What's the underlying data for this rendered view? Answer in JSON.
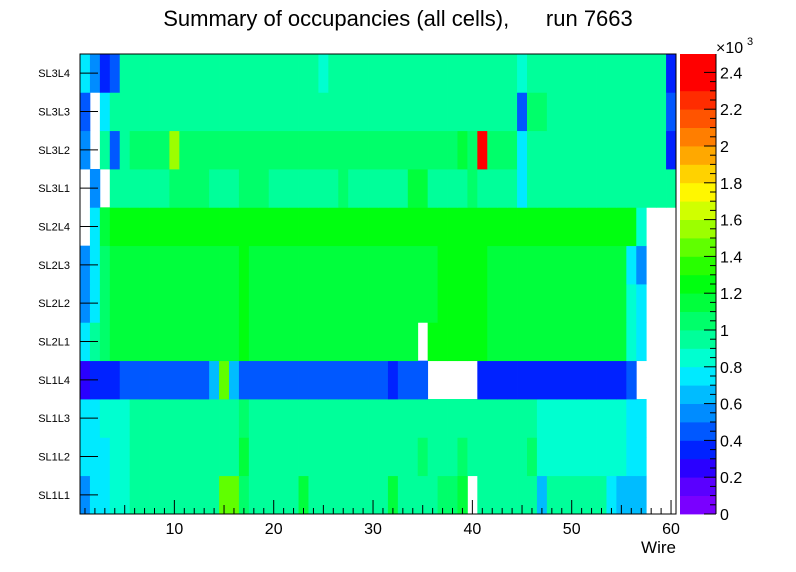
{
  "title": "Summary of occupancies (all cells),      run 7663",
  "chart_data": {
    "type": "heatmap",
    "title": "Summary of occupancies (all cells),      run 7663",
    "xlabel": "Wire",
    "ylabel": "",
    "xlim": [
      0.5,
      60.5
    ],
    "x_ticks": [
      "10",
      "20",
      "30",
      "40",
      "50",
      "60"
    ],
    "y_categories": [
      "SL1L1",
      "SL1L2",
      "SL1L3",
      "SL1L4",
      "SL2L1",
      "SL2L2",
      "SL2L3",
      "SL2L4",
      "SL3L1",
      "SL3L2",
      "SL3L3",
      "SL3L4"
    ],
    "z_range": [
      0,
      2500
    ],
    "z_exponent_label": "×10",
    "z_exponent": "3",
    "z_ticks": [
      "0",
      "0.2",
      "0.4",
      "0.6",
      "0.8",
      "1",
      "1.2",
      "1.4",
      "1.6",
      "1.8",
      "2",
      "2.2",
      "2.4"
    ],
    "palette": [
      "#7a00ff",
      "#5a00ff",
      "#2a00ff",
      "#0022ff",
      "#0058ff",
      "#008cff",
      "#00bcff",
      "#00eaff",
      "#00ffd0",
      "#00ff9a",
      "#00ff6a",
      "#00ff3c",
      "#00ff10",
      "#28ff00",
      "#60ff00",
      "#9cff00",
      "#d0ff00",
      "#fff700",
      "#ffd200",
      "#ffa800",
      "#ff7e00",
      "#ff5400",
      "#ff2c00",
      "#ff0000",
      "#ff0000"
    ],
    "z_units_per_color": 100,
    "rows": [
      [
        570,
        750,
        780,
        850,
        850,
        950,
        950,
        950,
        950,
        950,
        950,
        950,
        950,
        930,
        1450,
        1450,
        1000,
        950,
        950,
        950,
        930,
        950,
        1100,
        950,
        950,
        950,
        950,
        950,
        950,
        950,
        950,
        1100,
        950,
        950,
        950,
        950,
        1050,
        1050,
        1100,
        0,
        950,
        950,
        950,
        950,
        950,
        950,
        680,
        950,
        950,
        950,
        950,
        950,
        950,
        750,
        650,
        650,
        650,
        0,
        0,
        0
      ],
      [
        700,
        750,
        700,
        860,
        860,
        950,
        950,
        950,
        950,
        950,
        950,
        950,
        950,
        940,
        950,
        950,
        1100,
        950,
        950,
        950,
        950,
        950,
        950,
        950,
        950,
        950,
        950,
        950,
        950,
        950,
        950,
        950,
        950,
        950,
        1050,
        950,
        950,
        950,
        1050,
        950,
        950,
        950,
        950,
        950,
        950,
        1050,
        880,
        880,
        880,
        880,
        880,
        880,
        820,
        800,
        880,
        700,
        700,
        0,
        0,
        0
      ],
      [
        700,
        750,
        850,
        850,
        850,
        950,
        950,
        950,
        950,
        950,
        950,
        950,
        950,
        950,
        950,
        950,
        1000,
        950,
        950,
        950,
        950,
        950,
        950,
        950,
        950,
        950,
        950,
        950,
        950,
        950,
        950,
        950,
        950,
        950,
        950,
        950,
        950,
        950,
        950,
        950,
        950,
        950,
        950,
        950,
        950,
        950,
        870,
        870,
        870,
        870,
        870,
        870,
        870,
        870,
        870,
        700,
        700,
        0,
        0,
        0
      ],
      [
        280,
        350,
        300,
        300,
        400,
        400,
        400,
        400,
        400,
        400,
        400,
        400,
        400,
        600,
        1400,
        600,
        400,
        400,
        400,
        400,
        400,
        400,
        400,
        400,
        400,
        400,
        400,
        400,
        400,
        400,
        400,
        350,
        400,
        400,
        400,
        0,
        0,
        0,
        0,
        0,
        300,
        300,
        300,
        300,
        300,
        300,
        300,
        300,
        300,
        300,
        300,
        300,
        300,
        300,
        380,
        450,
        0,
        0,
        0,
        0
      ],
      [
        700,
        900,
        1050,
        1150,
        1150,
        1150,
        1150,
        1150,
        1150,
        1150,
        1150,
        1150,
        1150,
        1150,
        1150,
        1150,
        1200,
        1150,
        1150,
        1150,
        1150,
        1150,
        1150,
        1150,
        1150,
        1150,
        1150,
        1150,
        1150,
        1150,
        1150,
        1150,
        1150,
        1150,
        0,
        1250,
        1250,
        1250,
        1250,
        1250,
        1250,
        1150,
        1150,
        1150,
        1150,
        1150,
        1150,
        1150,
        1150,
        1150,
        1150,
        1150,
        1150,
        1150,
        1150,
        850,
        700,
        0,
        0,
        0
      ],
      [
        500,
        700,
        1050,
        1150,
        1150,
        1150,
        1150,
        1150,
        1150,
        1150,
        1150,
        1150,
        1150,
        1150,
        1150,
        1150,
        1200,
        1150,
        1150,
        1150,
        1150,
        1150,
        1150,
        1150,
        1150,
        1150,
        1150,
        1150,
        1150,
        1150,
        1150,
        1150,
        1150,
        1150,
        1150,
        1150,
        1250,
        1250,
        1250,
        1250,
        1250,
        1150,
        1150,
        1150,
        1150,
        1150,
        1150,
        1150,
        1150,
        1150,
        1150,
        1150,
        1150,
        1150,
        1150,
        850,
        700,
        0,
        0,
        0
      ],
      [
        500,
        700,
        1050,
        1150,
        1150,
        1150,
        1150,
        1150,
        1150,
        1150,
        1150,
        1150,
        1150,
        1150,
        1150,
        1150,
        1200,
        1150,
        1150,
        1150,
        1150,
        1150,
        1150,
        1150,
        1150,
        1150,
        1150,
        1150,
        1150,
        1150,
        1150,
        1150,
        1150,
        1150,
        1150,
        1150,
        1250,
        1250,
        1250,
        1250,
        1250,
        1150,
        1150,
        1150,
        1150,
        1150,
        1150,
        1150,
        1150,
        1150,
        1150,
        1150,
        1150,
        1150,
        1150,
        700,
        500,
        0,
        0,
        0
      ],
      [
        0,
        750,
        1100,
        1200,
        1200,
        1200,
        1200,
        1200,
        1200,
        1200,
        1200,
        1200,
        1250,
        1250,
        1200,
        1200,
        1200,
        1200,
        1200,
        1200,
        1200,
        1200,
        1200,
        1200,
        1200,
        1200,
        1200,
        1200,
        1200,
        1200,
        1200,
        1200,
        1200,
        1200,
        1200,
        1200,
        1200,
        1200,
        1200,
        1200,
        1200,
        1200,
        1200,
        1200,
        1200,
        1200,
        1200,
        1200,
        1200,
        1200,
        1200,
        1200,
        1200,
        1200,
        1200,
        1200,
        850,
        0,
        0,
        0
      ],
      [
        0,
        500,
        0,
        900,
        900,
        950,
        950,
        950,
        950,
        1050,
        1050,
        1050,
        1050,
        950,
        950,
        950,
        1050,
        1050,
        1050,
        950,
        950,
        950,
        950,
        950,
        950,
        950,
        1050,
        950,
        950,
        950,
        950,
        950,
        950,
        1150,
        1150,
        950,
        950,
        950,
        950,
        1050,
        950,
        950,
        950,
        950,
        700,
        950,
        950,
        950,
        950,
        950,
        950,
        950,
        950,
        950,
        950,
        950,
        950,
        950,
        950,
        900
      ],
      [
        500,
        0,
        900,
        400,
        950,
        1000,
        1000,
        1000,
        1000,
        1550,
        1050,
        1050,
        1050,
        1050,
        1050,
        1050,
        1050,
        1050,
        1050,
        1050,
        1050,
        1050,
        1050,
        1050,
        1050,
        1050,
        1050,
        1050,
        1050,
        1050,
        1050,
        1050,
        1050,
        1050,
        1050,
        1050,
        1050,
        1050,
        1150,
        1050,
        2400,
        1050,
        1050,
        1050,
        700,
        950,
        950,
        950,
        950,
        950,
        950,
        950,
        950,
        950,
        950,
        950,
        950,
        950,
        950,
        300
      ],
      [
        400,
        0,
        750,
        950,
        950,
        950,
        950,
        950,
        950,
        950,
        950,
        950,
        950,
        950,
        950,
        950,
        950,
        950,
        950,
        950,
        950,
        950,
        950,
        950,
        950,
        950,
        950,
        950,
        950,
        950,
        950,
        950,
        950,
        950,
        950,
        950,
        950,
        950,
        950,
        950,
        950,
        950,
        950,
        950,
        400,
        1050,
        1050,
        950,
        950,
        950,
        950,
        950,
        950,
        950,
        950,
        950,
        950,
        950,
        950,
        400
      ],
      [
        750,
        550,
        350,
        400,
        950,
        950,
        950,
        950,
        950,
        950,
        950,
        950,
        950,
        950,
        950,
        950,
        950,
        950,
        950,
        950,
        950,
        950,
        950,
        950,
        800,
        950,
        950,
        950,
        950,
        950,
        950,
        950,
        950,
        950,
        950,
        950,
        950,
        950,
        950,
        950,
        950,
        950,
        950,
        950,
        800,
        950,
        950,
        950,
        950,
        950,
        950,
        950,
        950,
        950,
        950,
        950,
        950,
        950,
        950,
        300
      ]
    ]
  }
}
